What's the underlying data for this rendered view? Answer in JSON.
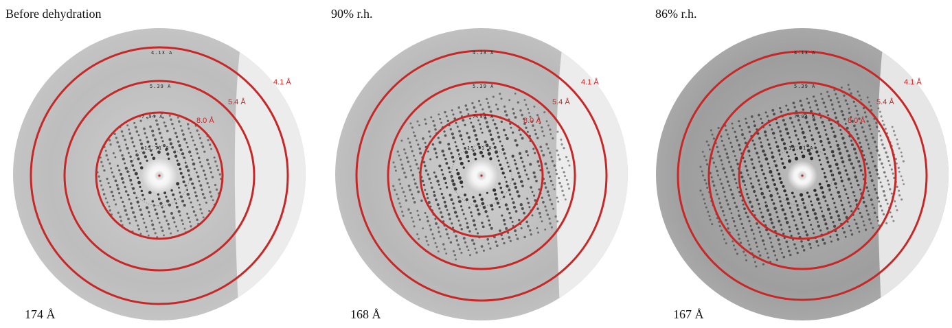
{
  "panels": [
    {
      "title": "Before dehydration",
      "cell": "174 Å",
      "rings": [
        "4.1 Å",
        "5.4 Å",
        "8.0 Å"
      ],
      "inner_labels": [
        "4.13 A",
        "5.39 A",
        "7.94 A",
        "15.71 A"
      ]
    },
    {
      "title": "90% r.h.",
      "cell": "168 Å",
      "rings": [
        "4.1 Å",
        "5.4 Å",
        "8.0 Å"
      ],
      "inner_labels": [
        "4.13 A",
        "5.39 A",
        "7.94 A",
        "15.71 A"
      ]
    },
    {
      "title": "86% r.h.",
      "cell": "167 Å",
      "rings": [
        "4.1 Å",
        "5.4 Å",
        "8.0 Å"
      ],
      "inner_labels": [
        "4.13 A",
        "5.39 A",
        "7.94 A",
        "15.71 A"
      ]
    }
  ],
  "colors": {
    "ring": "#c62828",
    "detector": "#b9b9b9",
    "spot": "#141414",
    "shadow": "#ededed"
  }
}
